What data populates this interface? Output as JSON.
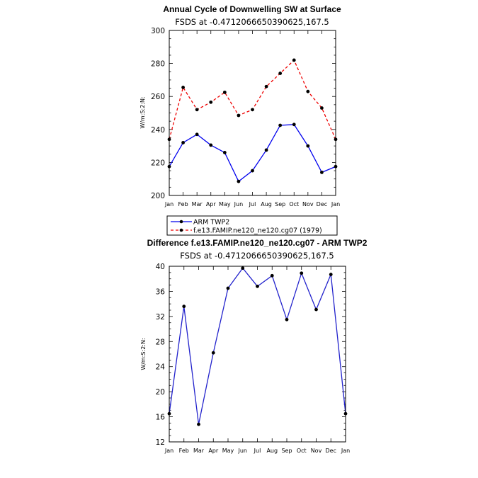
{
  "colors": {
    "arm": "#0000ee",
    "model": "#ee0000",
    "diff": "#2222cc",
    "marker": "#000000"
  },
  "chart_data": [
    {
      "type": "line",
      "title": "Annual Cycle of Downwelling SW at Surface",
      "subtitle": "FSDS at -0.4712066650390625,167.5",
      "ylabel": "W/m:S:2:N:",
      "xlabel": "",
      "ylim": [
        200,
        300
      ],
      "yticks": [
        200,
        220,
        240,
        260,
        280,
        300
      ],
      "categories": [
        "Jan",
        "Feb",
        "Mar",
        "Apr",
        "May",
        "Jun",
        "Jul",
        "Aug",
        "Sep",
        "Oct",
        "Nov",
        "Dec",
        "Jan"
      ],
      "series": [
        {
          "name": "ARM TWP2",
          "values": [
            217.5,
            232,
            237,
            230.5,
            226,
            208.5,
            215,
            227.5,
            242.5,
            243,
            230,
            214,
            217.5
          ]
        },
        {
          "name": "f.e13.FAMIP.ne120_ne120.cg07 (1979)",
          "values": [
            234,
            265.5,
            252,
            256.5,
            262.5,
            248.5,
            252,
            266,
            274,
            282,
            263,
            253,
            234
          ]
        }
      ],
      "legend": [
        "ARM TWP2",
        "f.e13.FAMIP.ne120_ne120.cg07 (1979)"
      ]
    },
    {
      "type": "line",
      "title": "Difference f.e13.FAMIP.ne120_ne120.cg07 - ARM TWP2",
      "subtitle": "FSDS at -0.4712066650390625,167.5",
      "ylabel": "W/m:S:2:N:",
      "xlabel": "",
      "ylim": [
        12,
        40
      ],
      "yticks": [
        12,
        16,
        20,
        24,
        28,
        32,
        36,
        40
      ],
      "categories": [
        "Jan",
        "Feb",
        "Mar",
        "Apr",
        "May",
        "Jun",
        "Jul",
        "Aug",
        "Sep",
        "Oct",
        "Nov",
        "Dec",
        "Jan"
      ],
      "series": [
        {
          "name": "Difference",
          "values": [
            16.5,
            33.6,
            14.8,
            26.2,
            36.5,
            39.7,
            36.8,
            38.5,
            31.5,
            38.9,
            33.1,
            38.7,
            16.5
          ]
        }
      ]
    }
  ]
}
